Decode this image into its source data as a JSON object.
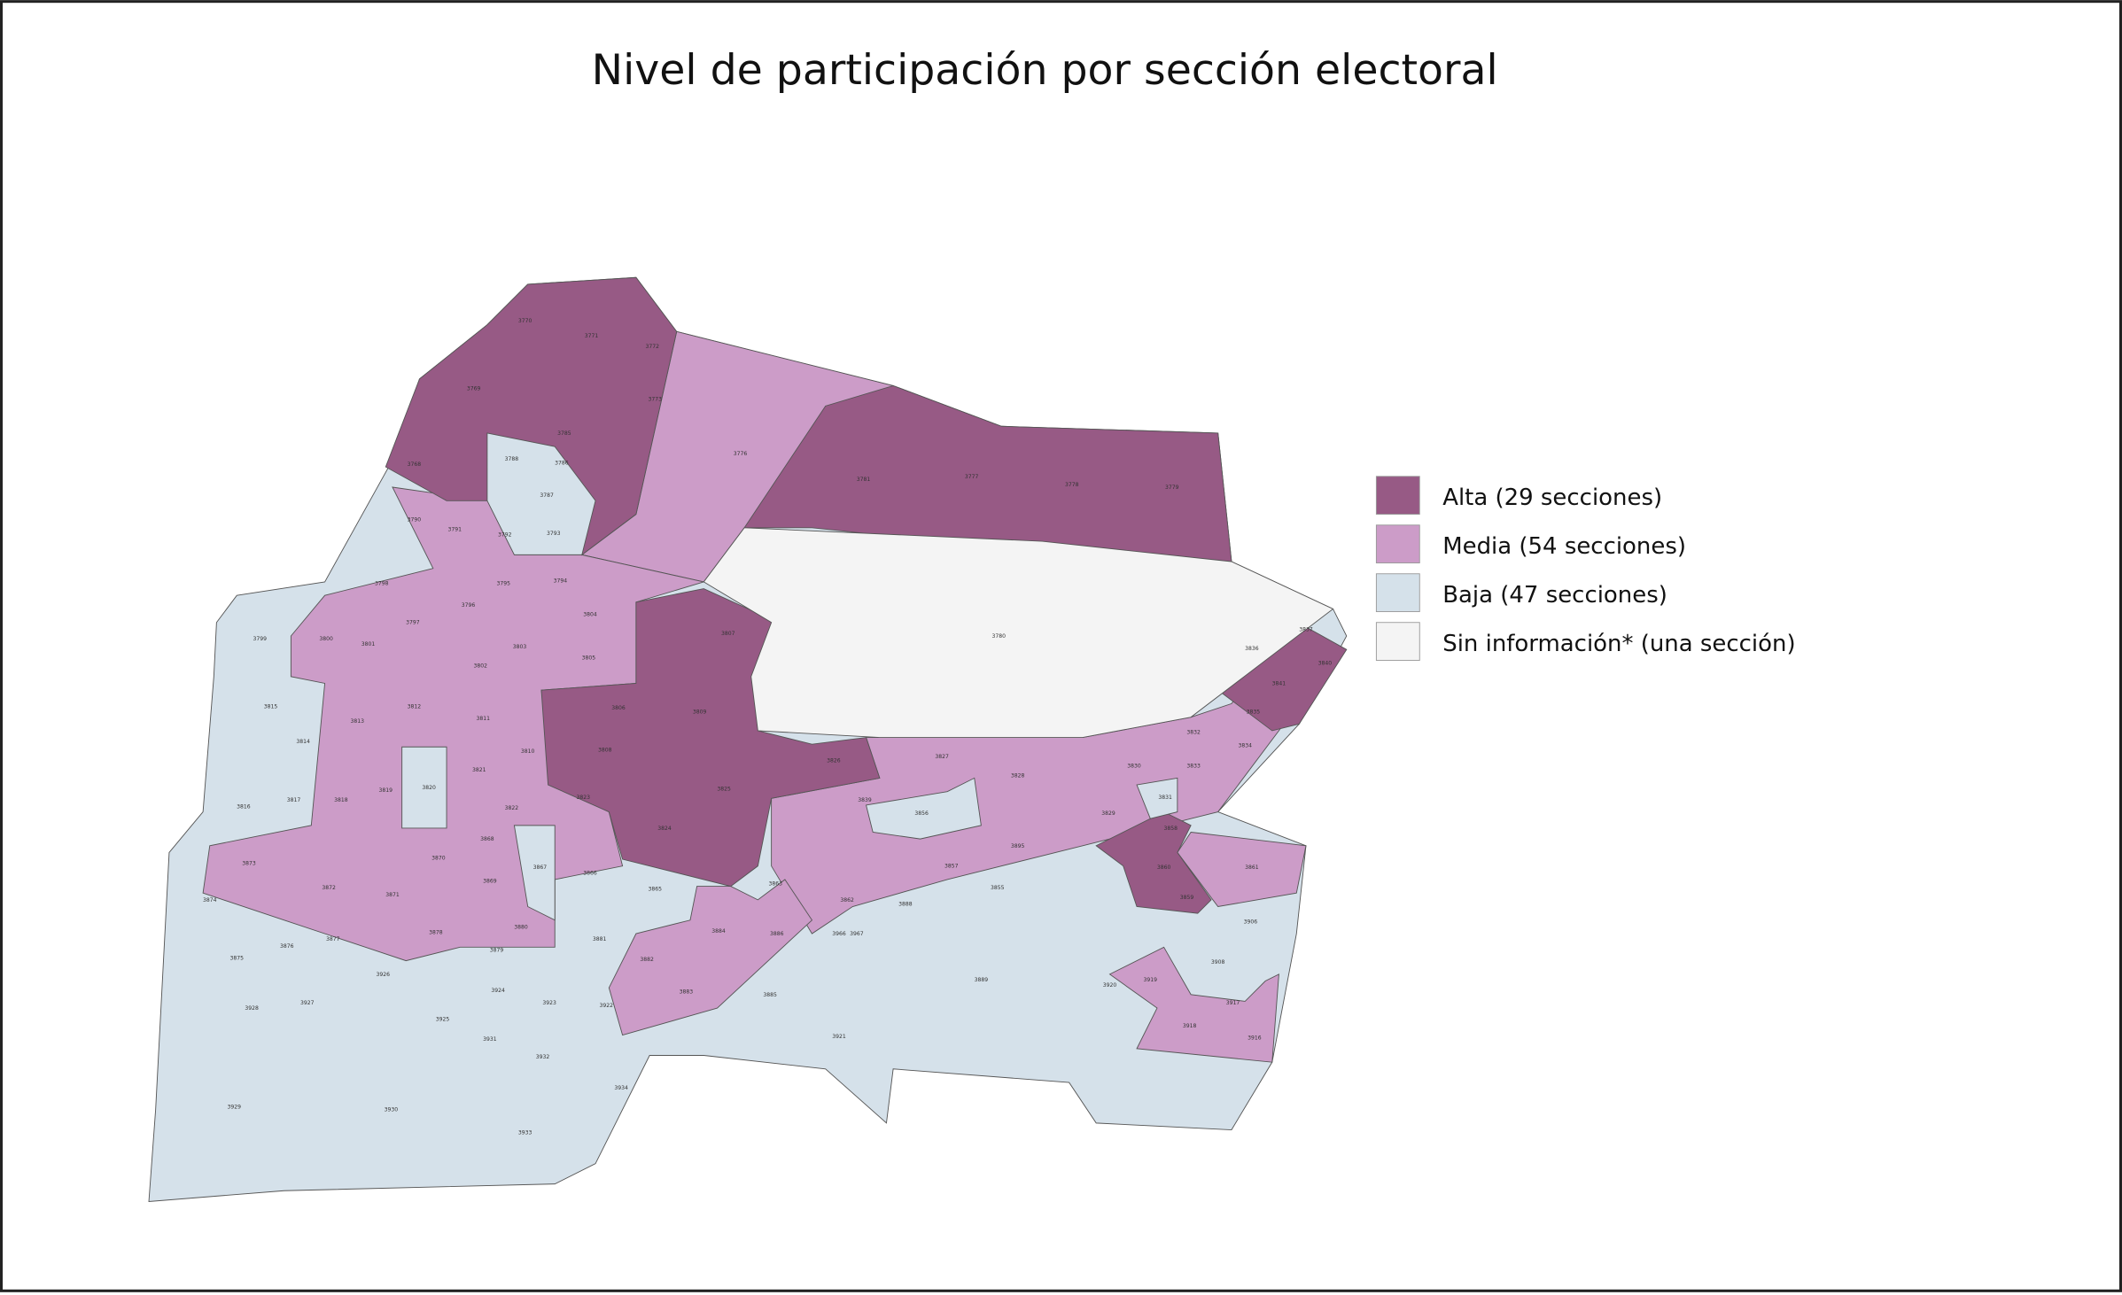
{
  "title": "Nivel de participación por sección electoral",
  "legend": [
    {
      "label": "Alta (29 secciones)",
      "color": "#975a85"
    },
    {
      "label": "Media (54 secciones)",
      "color": "#cc9cc8"
    },
    {
      "label": "Baja (47 secciones)",
      "color": "#d5e1ea"
    },
    {
      "label": "Sin información* (una sección)",
      "color": "#f4f4f4"
    }
  ],
  "sections": [
    "3770",
    "3771",
    "3772",
    "3773",
    "3769",
    "3768",
    "3788",
    "3785",
    "3786",
    "3787",
    "3793",
    "3776",
    "3781",
    "3777",
    "3778",
    "3779",
    "3780",
    "3790",
    "3791",
    "3792",
    "3795",
    "3794",
    "3798",
    "3799",
    "3800",
    "3801",
    "3797",
    "3796",
    "3804",
    "3802",
    "3803",
    "3805",
    "3806",
    "3809",
    "3812",
    "3813",
    "3811",
    "3810",
    "3808",
    "3815",
    "3814",
    "3816",
    "3817",
    "3818",
    "3819",
    "3820",
    "3821",
    "3822",
    "3823",
    "3807",
    "3825",
    "3824",
    "3826",
    "3827",
    "3828",
    "3829",
    "3830",
    "3832",
    "3833",
    "3834",
    "3831",
    "3835",
    "3836",
    "3837",
    "3840",
    "3841",
    "3858",
    "3860",
    "3859",
    "3861",
    "3839",
    "3856",
    "3855",
    "3857",
    "3862",
    "3863",
    "3865",
    "3866",
    "3867",
    "3868",
    "3869",
    "3870",
    "3871",
    "3872",
    "3873",
    "3874",
    "3875",
    "3876",
    "3877",
    "3878",
    "3879",
    "3880",
    "3881",
    "3882",
    "3883",
    "3884",
    "3886",
    "3885",
    "3888",
    "3889",
    "3895",
    "3906",
    "3908",
    "3919",
    "3920",
    "3917",
    "3918",
    "3916",
    "3921",
    "3922",
    "3923",
    "3924",
    "3925",
    "3926",
    "3927",
    "3928",
    "3929",
    "3930",
    "3931",
    "3932",
    "3933",
    "3934",
    "3966",
    "3967"
  ]
}
